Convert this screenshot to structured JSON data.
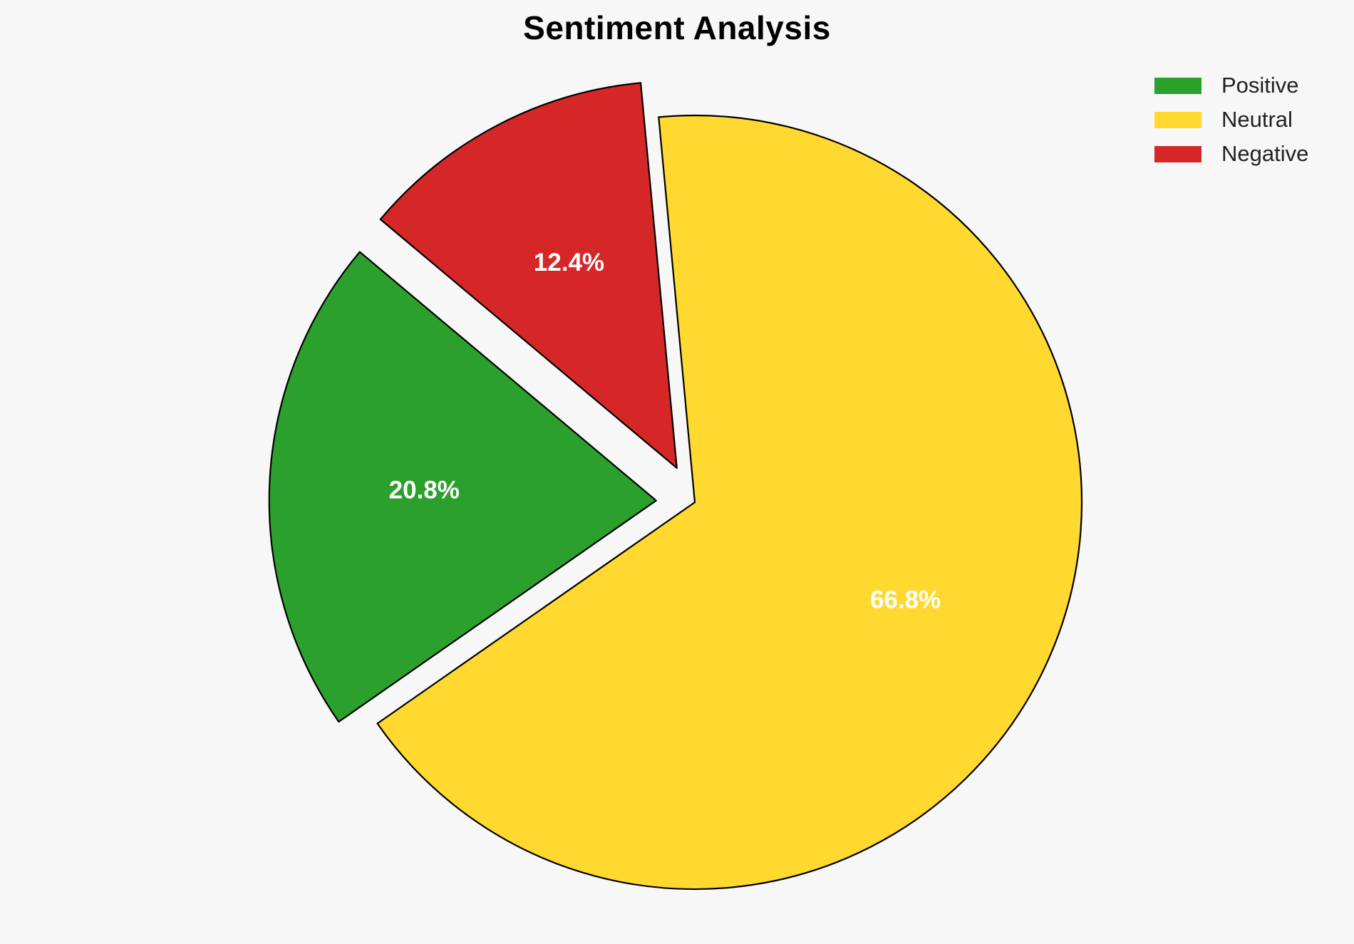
{
  "chart_data": {
    "type": "pie",
    "title": "Sentiment Analysis",
    "categories": [
      "Positive",
      "Neutral",
      "Negative"
    ],
    "values": [
      20.8,
      66.8,
      12.4
    ],
    "labels": [
      "20.8%",
      "66.8%",
      "12.4%"
    ],
    "colors": [
      "#2ca02c",
      "#ffd92f",
      "#d62728"
    ],
    "exploded": [
      true,
      false,
      true
    ],
    "legend_position": "top-right",
    "label_color": "#ffffff",
    "edge_color": "#000000"
  }
}
